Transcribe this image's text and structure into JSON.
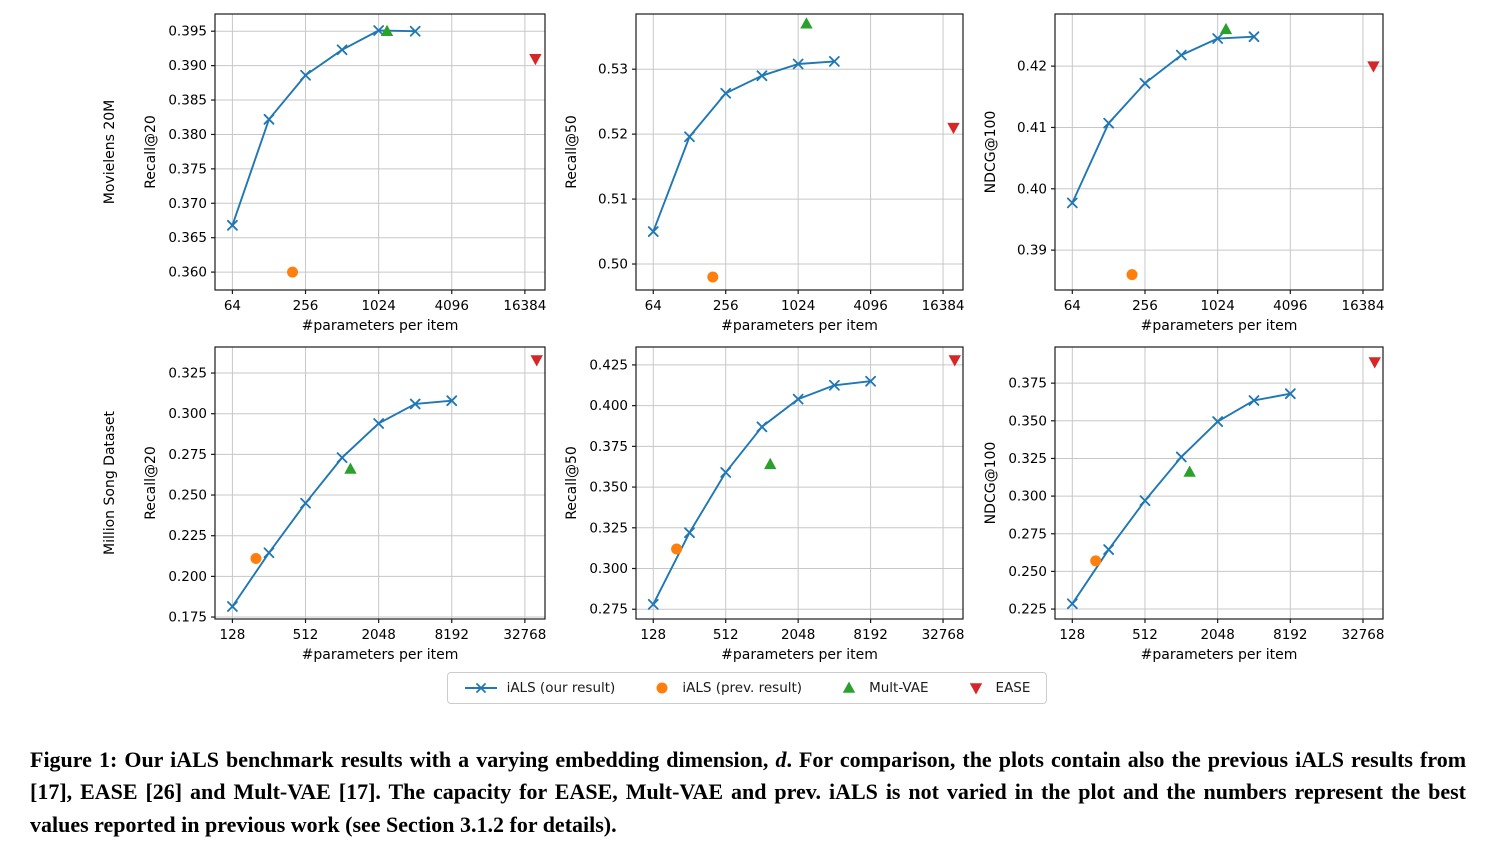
{
  "style": {
    "accent_blue": "#1f77b4",
    "accent_orange": "#ff7f0e",
    "accent_green": "#2ca02c",
    "accent_red": "#d62728",
    "grid_color": "#c7c7c7",
    "spine_color": "#1a1a1a",
    "legend_border": "#cccccc"
  },
  "legend": {
    "items": [
      {
        "key": "ials",
        "label": "iALS (our result)",
        "marker": "x-line",
        "color": "#1f77b4"
      },
      {
        "key": "ials_prev",
        "label": "iALS (prev. result)",
        "marker": "circle",
        "color": "#ff7f0e"
      },
      {
        "key": "multvae",
        "label": "Mult-VAE",
        "marker": "triangle-up",
        "color": "#2ca02c"
      },
      {
        "key": "ease",
        "label": "EASE",
        "marker": "triangle-down",
        "color": "#d62728"
      }
    ]
  },
  "figure": {
    "caption": {
      "label": "Figure 1:",
      "before_d": "Our iALS benchmark results with a varying embedding dimension,",
      "d": "d",
      "after_d": ". For comparison, the plots contain also the previous iALS results from [17], EASE [26] and Mult-VAE [17]. The capacity for EASE, Mult-VAE and prev. iALS is not varied in the plot and the numbers represent the best values reported in previous work (see Section 3.1.2 for details)."
    }
  },
  "chart_data": [
    {
      "type": "line",
      "dataset": "Movielens 20M",
      "ylabel": "Recall@20",
      "xlabel": "#parameters per item",
      "xscale": "log",
      "grid": true,
      "xlim": [
        46,
        24000
      ],
      "ylim": [
        0.3574,
        0.3975
      ],
      "xticks": {
        "values": [
          64,
          256,
          1024,
          4096,
          16384
        ],
        "labels": [
          "64",
          "256",
          "1024",
          "4096",
          "16384"
        ]
      },
      "yticks": {
        "values": [
          0.36,
          0.365,
          0.37,
          0.375,
          0.38,
          0.385,
          0.39,
          0.395
        ],
        "labels": [
          "0.360",
          "0.365",
          "0.370",
          "0.375",
          "0.380",
          "0.385",
          "0.390",
          "0.395"
        ]
      },
      "series": [
        {
          "name": "iALS (our result)",
          "key": "ials",
          "style": "line+x",
          "color": "#1f77b4",
          "x": [
            64,
            128,
            256,
            512,
            1024,
            2048
          ],
          "y": [
            0.3668,
            0.3822,
            0.3886,
            0.3923,
            0.3951,
            0.395
          ]
        },
        {
          "name": "iALS (prev. result)",
          "key": "ials_prev",
          "style": "circle",
          "color": "#ff7f0e",
          "x": [
            200
          ],
          "y": [
            0.36
          ]
        },
        {
          "name": "Mult-VAE",
          "key": "multvae",
          "style": "triangle-up",
          "color": "#2ca02c",
          "x": [
            1200
          ],
          "y": [
            0.395
          ]
        },
        {
          "name": "EASE",
          "key": "ease",
          "style": "triangle-down",
          "color": "#d62728",
          "x": [
            20000
          ],
          "y": [
            0.391
          ]
        }
      ]
    },
    {
      "type": "line",
      "dataset": "",
      "ylabel": "Recall@50",
      "xlabel": "#parameters per item",
      "xscale": "log",
      "grid": true,
      "xlim": [
        46,
        24000
      ],
      "ylim": [
        0.496,
        0.5385
      ],
      "xticks": {
        "values": [
          64,
          256,
          1024,
          4096,
          16384
        ],
        "labels": [
          "64",
          "256",
          "1024",
          "4096",
          "16384"
        ]
      },
      "yticks": {
        "values": [
          0.5,
          0.51,
          0.52,
          0.53
        ],
        "labels": [
          "0.50",
          "0.51",
          "0.52",
          "0.53"
        ]
      },
      "series": [
        {
          "name": "iALS (our result)",
          "key": "ials",
          "style": "line+x",
          "color": "#1f77b4",
          "x": [
            64,
            128,
            256,
            512,
            1024,
            2048
          ],
          "y": [
            0.505,
            0.5196,
            0.5263,
            0.529,
            0.5308,
            0.5312
          ]
        },
        {
          "name": "iALS (prev. result)",
          "key": "ials_prev",
          "style": "circle",
          "color": "#ff7f0e",
          "x": [
            200
          ],
          "y": [
            0.498
          ]
        },
        {
          "name": "Mult-VAE",
          "key": "multvae",
          "style": "triangle-up",
          "color": "#2ca02c",
          "x": [
            1200
          ],
          "y": [
            0.537
          ]
        },
        {
          "name": "EASE",
          "key": "ease",
          "style": "triangle-down",
          "color": "#d62728",
          "x": [
            20000
          ],
          "y": [
            0.521
          ]
        }
      ]
    },
    {
      "type": "line",
      "dataset": "",
      "ylabel": "NDCG@100",
      "xlabel": "#parameters per item",
      "xscale": "log",
      "grid": true,
      "xlim": [
        46,
        24000
      ],
      "ylim": [
        0.3835,
        0.4285
      ],
      "xticks": {
        "values": [
          64,
          256,
          1024,
          4096,
          16384
        ],
        "labels": [
          "64",
          "256",
          "1024",
          "4096",
          "16384"
        ]
      },
      "yticks": {
        "values": [
          0.39,
          0.4,
          0.41,
          0.42
        ],
        "labels": [
          "0.39",
          "0.40",
          "0.41",
          "0.42"
        ]
      },
      "series": [
        {
          "name": "iALS (our result)",
          "key": "ials",
          "style": "line+x",
          "color": "#1f77b4",
          "x": [
            64,
            128,
            256,
            512,
            1024,
            2048
          ],
          "y": [
            0.3977,
            0.4107,
            0.4172,
            0.4218,
            0.4245,
            0.4248
          ]
        },
        {
          "name": "iALS (prev. result)",
          "key": "ials_prev",
          "style": "circle",
          "color": "#ff7f0e",
          "x": [
            200
          ],
          "y": [
            0.386
          ]
        },
        {
          "name": "Mult-VAE",
          "key": "multvae",
          "style": "triangle-up",
          "color": "#2ca02c",
          "x": [
            1200
          ],
          "y": [
            0.426
          ]
        },
        {
          "name": "EASE",
          "key": "ease",
          "style": "triangle-down",
          "color": "#d62728",
          "x": [
            20000
          ],
          "y": [
            0.42
          ]
        }
      ]
    },
    {
      "type": "line",
      "dataset": "Million Song Dataset",
      "ylabel": "Recall@20",
      "xlabel": "#parameters per item",
      "xscale": "log",
      "grid": true,
      "xlim": [
        92,
        48000
      ],
      "ylim": [
        0.1738,
        0.341
      ],
      "xticks": {
        "values": [
          128,
          512,
          2048,
          8192,
          32768
        ],
        "labels": [
          "128",
          "512",
          "2048",
          "8192",
          "32768"
        ]
      },
      "yticks": {
        "values": [
          0.175,
          0.2,
          0.225,
          0.25,
          0.275,
          0.3,
          0.325
        ],
        "labels": [
          "0.175",
          "0.200",
          "0.225",
          "0.250",
          "0.275",
          "0.300",
          "0.325"
        ]
      },
      "series": [
        {
          "name": "iALS (our result)",
          "key": "ials",
          "style": "line+x",
          "color": "#1f77b4",
          "x": [
            128,
            256,
            512,
            1024,
            2048,
            4096,
            8192
          ],
          "y": [
            0.1815,
            0.2145,
            0.245,
            0.273,
            0.294,
            0.306,
            0.308
          ]
        },
        {
          "name": "iALS (prev. result)",
          "key": "ials_prev",
          "style": "circle",
          "color": "#ff7f0e",
          "x": [
            200
          ],
          "y": [
            0.211
          ]
        },
        {
          "name": "Mult-VAE",
          "key": "multvae",
          "style": "triangle-up",
          "color": "#2ca02c",
          "x": [
            1200
          ],
          "y": [
            0.266
          ]
        },
        {
          "name": "EASE",
          "key": "ease",
          "style": "triangle-down",
          "color": "#d62728",
          "x": [
            41000
          ],
          "y": [
            0.333
          ]
        }
      ]
    },
    {
      "type": "line",
      "dataset": "",
      "ylabel": "Recall@50",
      "xlabel": "#parameters per item",
      "xscale": "log",
      "grid": true,
      "xlim": [
        92,
        48000
      ],
      "ylim": [
        0.269,
        0.436
      ],
      "xticks": {
        "values": [
          128,
          512,
          2048,
          8192,
          32768
        ],
        "labels": [
          "128",
          "512",
          "2048",
          "8192",
          "32768"
        ]
      },
      "yticks": {
        "values": [
          0.275,
          0.3,
          0.325,
          0.35,
          0.375,
          0.4,
          0.425
        ],
        "labels": [
          "0.275",
          "0.300",
          "0.325",
          "0.350",
          "0.375",
          "0.400",
          "0.425"
        ]
      },
      "series": [
        {
          "name": "iALS (our result)",
          "key": "ials",
          "style": "line+x",
          "color": "#1f77b4",
          "x": [
            128,
            256,
            512,
            1024,
            2048,
            4096,
            8192
          ],
          "y": [
            0.278,
            0.322,
            0.359,
            0.387,
            0.404,
            0.4125,
            0.415
          ]
        },
        {
          "name": "iALS (prev. result)",
          "key": "ials_prev",
          "style": "circle",
          "color": "#ff7f0e",
          "x": [
            200
          ],
          "y": [
            0.312
          ]
        },
        {
          "name": "Mult-VAE",
          "key": "multvae",
          "style": "triangle-up",
          "color": "#2ca02c",
          "x": [
            1200
          ],
          "y": [
            0.364
          ]
        },
        {
          "name": "EASE",
          "key": "ease",
          "style": "triangle-down",
          "color": "#d62728",
          "x": [
            41000
          ],
          "y": [
            0.428
          ]
        }
      ]
    },
    {
      "type": "line",
      "dataset": "",
      "ylabel": "NDCG@100",
      "xlabel": "#parameters per item",
      "xscale": "log",
      "grid": true,
      "xlim": [
        92,
        48000
      ],
      "ylim": [
        0.2184,
        0.399
      ],
      "xticks": {
        "values": [
          128,
          512,
          2048,
          8192,
          32768
        ],
        "labels": [
          "128",
          "512",
          "2048",
          "8192",
          "32768"
        ]
      },
      "yticks": {
        "values": [
          0.225,
          0.25,
          0.275,
          0.3,
          0.325,
          0.35,
          0.375
        ],
        "labels": [
          "0.225",
          "0.250",
          "0.275",
          "0.300",
          "0.325",
          "0.350",
          "0.375"
        ]
      },
      "series": [
        {
          "name": "iALS (our result)",
          "key": "ials",
          "style": "line+x",
          "color": "#1f77b4",
          "x": [
            128,
            256,
            512,
            1024,
            2048,
            4096,
            8192
          ],
          "y": [
            0.2285,
            0.2645,
            0.297,
            0.326,
            0.3495,
            0.3635,
            0.368
          ]
        },
        {
          "name": "iALS (prev. result)",
          "key": "ials_prev",
          "style": "circle",
          "color": "#ff7f0e",
          "x": [
            200
          ],
          "y": [
            0.257
          ]
        },
        {
          "name": "Mult-VAE",
          "key": "multvae",
          "style": "triangle-up",
          "color": "#2ca02c",
          "x": [
            1200
          ],
          "y": [
            0.316
          ]
        },
        {
          "name": "EASE",
          "key": "ease",
          "style": "triangle-down",
          "color": "#d62728",
          "x": [
            41000
          ],
          "y": [
            0.389
          ]
        }
      ]
    }
  ]
}
